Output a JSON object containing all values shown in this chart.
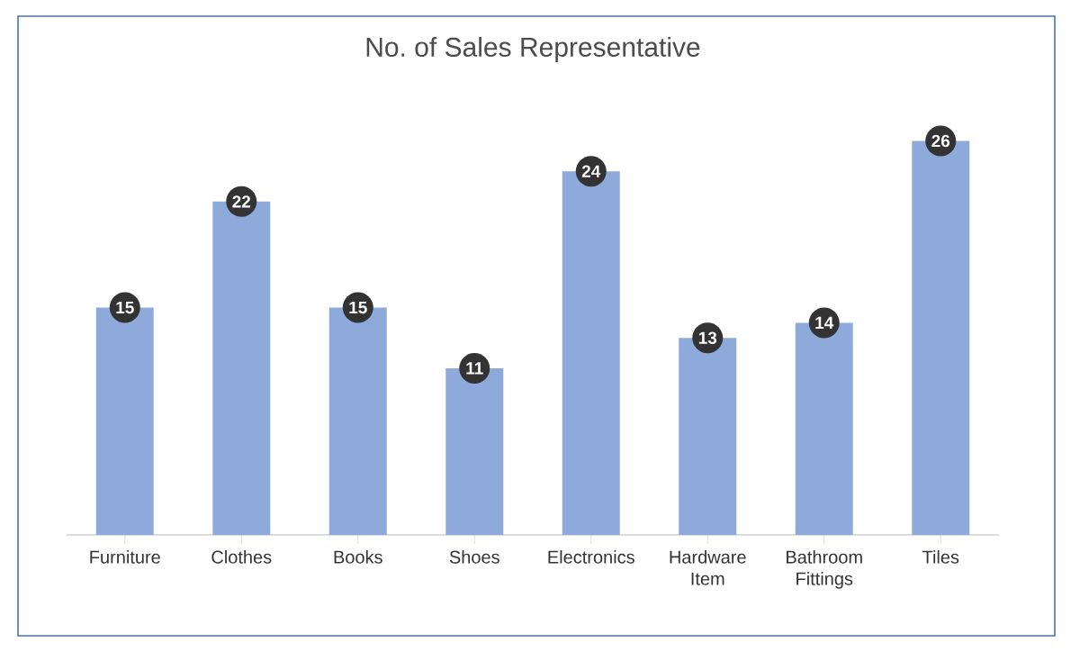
{
  "chart_data": {
    "type": "bar",
    "title": "No. of Sales Representative",
    "categories": [
      "Furniture",
      "Clothes",
      "Books",
      "Shoes",
      "Electronics",
      "Hardware Item",
      "Bathroom Fittings",
      "Tiles"
    ],
    "values": [
      15,
      22,
      15,
      11,
      24,
      13,
      14,
      26
    ],
    "color": "#8eaadb",
    "data_labels": true,
    "grid": false
  }
}
